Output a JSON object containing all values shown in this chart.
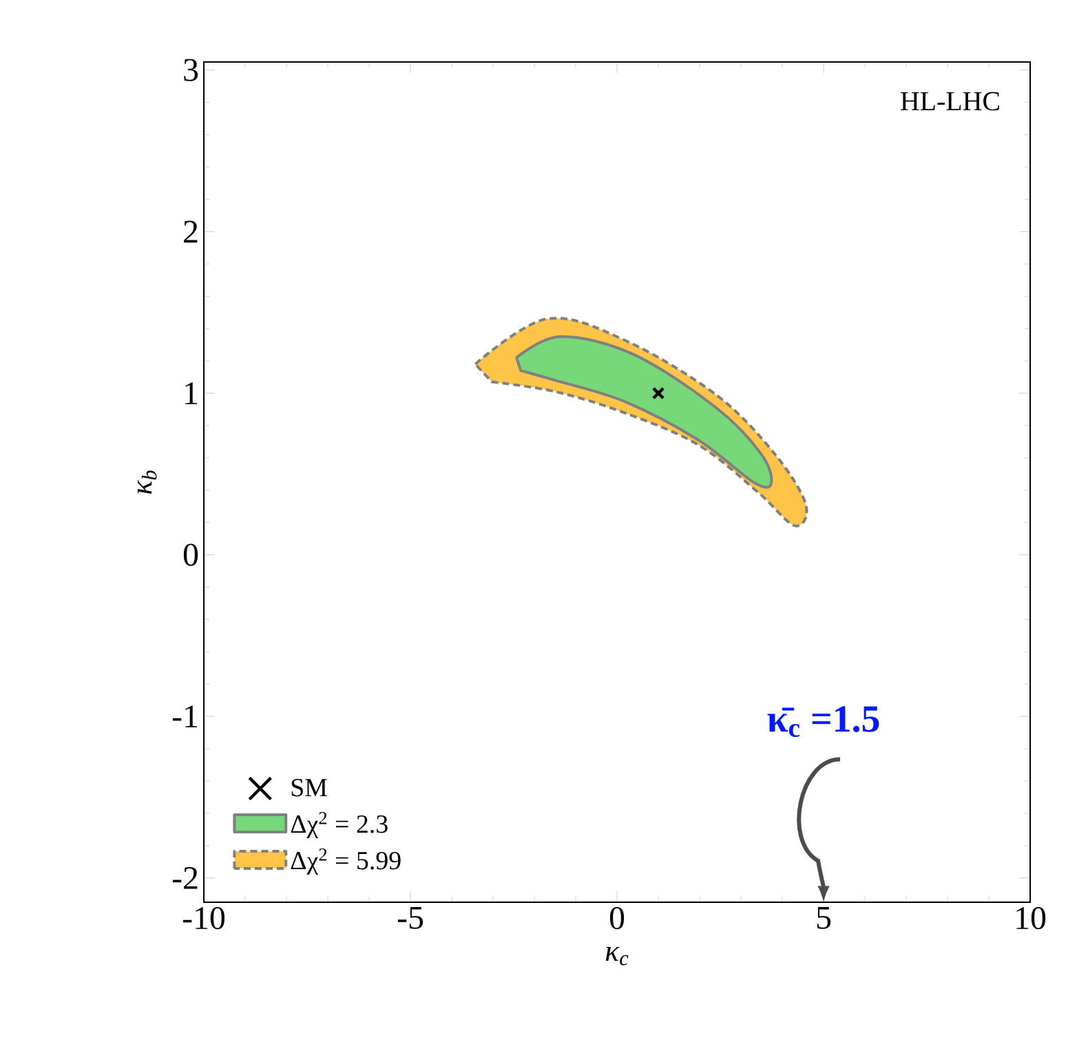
{
  "chart_data": {
    "type": "area",
    "xlabel": "κ$_{c}$",
    "ylabel": "κ$_{b}$",
    "xlim": [
      -10,
      10
    ],
    "ylim": [
      -2.15,
      3.05
    ],
    "xticks": [
      -10,
      -5,
      0,
      5,
      10
    ],
    "yticks": [
      -2,
      -1,
      0,
      1,
      2,
      3
    ],
    "legend": "bottom left",
    "grid": false,
    "annotations": [
      "HL-LHC",
      "κ̄$_{c}$ =1.5"
    ],
    "series": [
      {
        "name": "Δχ$^{2}$ = 5.99",
        "color": "#fdc448",
        "line_style": "dashed",
        "x": [
          -3.43,
          -1.7,
          0.17,
          2.4,
          3.83,
          4.57,
          4.3,
          3.4,
          1.97,
          0.17,
          -1.5,
          -3.03
        ],
        "values": [
          1.18,
          1.46,
          1.33,
          0.99,
          0.62,
          0.31,
          0.18,
          0.39,
          0.68,
          0.88,
          1.01,
          1.07
        ]
      },
      {
        "name": "Δχ$^{2}$ = 2.3",
        "color": "#77d87a",
        "line_style": "solid",
        "x": [
          -2.43,
          -1.37,
          0.4,
          2.4,
          3.5,
          3.73,
          3.3,
          1.97,
          0.17,
          -1.5,
          -2.33
        ],
        "values": [
          1.22,
          1.35,
          1.24,
          0.91,
          0.62,
          0.44,
          0.45,
          0.71,
          0.95,
          1.08,
          1.14
        ]
      },
      {
        "name": "SM",
        "type": "scatter",
        "marker": "cross",
        "color": "#000000",
        "x": [
          1
        ],
        "values": [
          1
        ]
      }
    ]
  }
}
